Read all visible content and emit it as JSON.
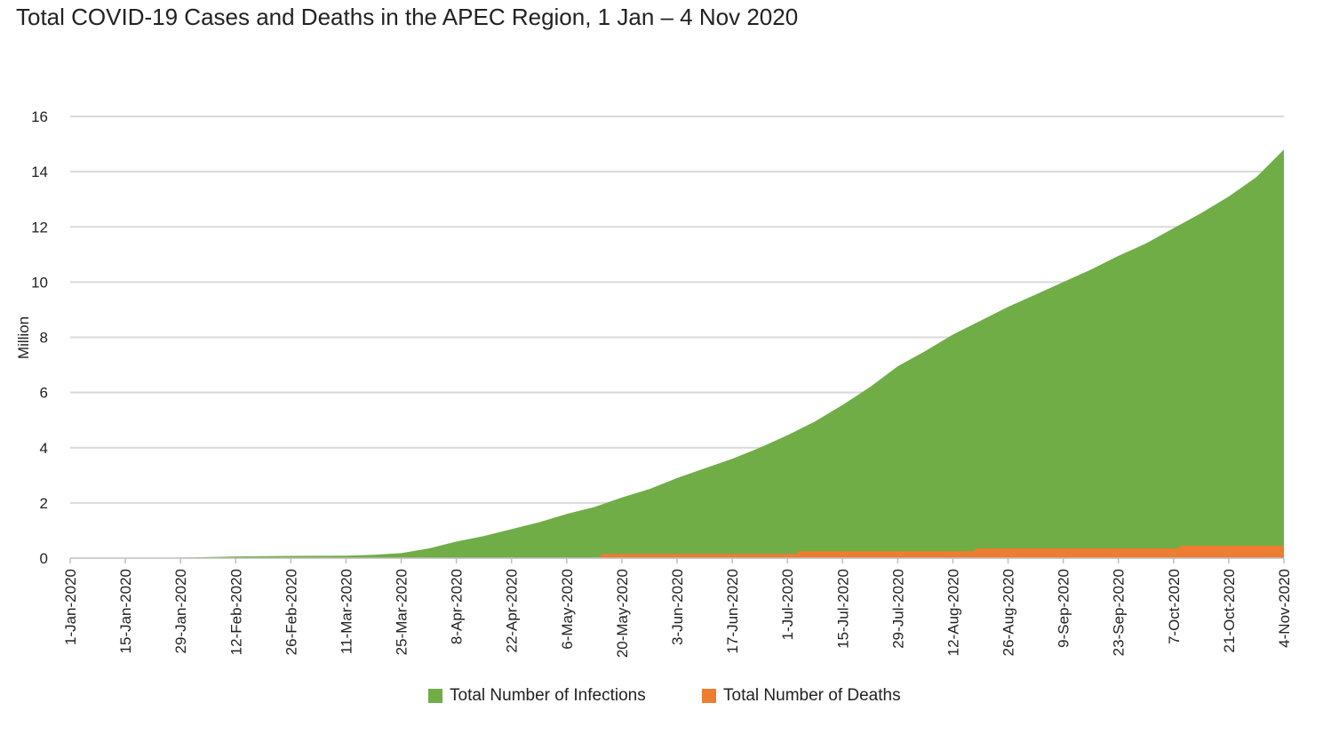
{
  "title": "Total COVID-19 Cases and Deaths in the APEC Region, 1 Jan – 4 Nov 2020",
  "chart_data": {
    "type": "area",
    "title": "Total COVID-19 Cases and Deaths in the APEC Region, 1 Jan – 4 Nov 2020",
    "ylabel": "Million",
    "ylim": [
      0,
      16
    ],
    "yticks": [
      0,
      2,
      4,
      6,
      8,
      10,
      12,
      14,
      16
    ],
    "xlim": [
      "2020-01-01",
      "2020-11-04"
    ],
    "xticks": [
      "1-Jan-2020",
      "15-Jan-2020",
      "29-Jan-2020",
      "12-Feb-2020",
      "26-Feb-2020",
      "11-Mar-2020",
      "25-Mar-2020",
      "8-Apr-2020",
      "22-Apr-2020",
      "6-May-2020",
      "20-May-2020",
      "3-Jun-2020",
      "17-Jun-2020",
      "1-Jul-2020",
      "15-Jul-2020",
      "29-Jul-2020",
      "12-Aug-2020",
      "26-Aug-2020",
      "9-Sep-2020",
      "23-Sep-2020",
      "7-Oct-2020",
      "21-Oct-2020",
      "4-Nov-2020"
    ],
    "grid": true,
    "legend_position": "bottom",
    "series": [
      {
        "name": "Total Number of Infections",
        "color": "#70ad47",
        "points": [
          [
            "2020-01-01",
            0
          ],
          [
            "2020-01-15",
            0
          ],
          [
            "2020-01-29",
            0.02
          ],
          [
            "2020-02-12",
            0.06
          ],
          [
            "2020-02-26",
            0.08
          ],
          [
            "2020-03-11",
            0.09
          ],
          [
            "2020-03-18",
            0.12
          ],
          [
            "2020-03-25",
            0.18
          ],
          [
            "2020-04-01",
            0.35
          ],
          [
            "2020-04-08",
            0.6
          ],
          [
            "2020-04-15",
            0.8
          ],
          [
            "2020-04-22",
            1.05
          ],
          [
            "2020-04-29",
            1.3
          ],
          [
            "2020-05-06",
            1.6
          ],
          [
            "2020-05-13",
            1.85
          ],
          [
            "2020-05-20",
            2.2
          ],
          [
            "2020-05-27",
            2.5
          ],
          [
            "2020-06-03",
            2.9
          ],
          [
            "2020-06-10",
            3.25
          ],
          [
            "2020-06-17",
            3.6
          ],
          [
            "2020-06-24",
            4.0
          ],
          [
            "2020-07-01",
            4.45
          ],
          [
            "2020-07-08",
            4.95
          ],
          [
            "2020-07-15",
            5.55
          ],
          [
            "2020-07-22",
            6.2
          ],
          [
            "2020-07-29",
            6.95
          ],
          [
            "2020-08-05",
            7.5
          ],
          [
            "2020-08-12",
            8.1
          ],
          [
            "2020-08-19",
            8.6
          ],
          [
            "2020-08-26",
            9.1
          ],
          [
            "2020-09-02",
            9.55
          ],
          [
            "2020-09-09",
            10.0
          ],
          [
            "2020-09-16",
            10.45
          ],
          [
            "2020-09-23",
            10.95
          ],
          [
            "2020-09-30",
            11.4
          ],
          [
            "2020-10-07",
            11.95
          ],
          [
            "2020-10-14",
            12.5
          ],
          [
            "2020-10-21",
            13.1
          ],
          [
            "2020-10-28",
            13.8
          ],
          [
            "2020-11-04",
            14.8
          ]
        ]
      },
      {
        "name": "Total Number of Deaths",
        "color": "#ed7d31",
        "points": [
          [
            "2020-01-01",
            0
          ],
          [
            "2020-05-14",
            0
          ],
          [
            "2020-05-15",
            0.15
          ],
          [
            "2020-07-03",
            0.15
          ],
          [
            "2020-07-04",
            0.25
          ],
          [
            "2020-08-17",
            0.25
          ],
          [
            "2020-08-18",
            0.35
          ],
          [
            "2020-10-08",
            0.35
          ],
          [
            "2020-10-09",
            0.45
          ],
          [
            "2020-11-04",
            0.45
          ]
        ]
      }
    ]
  }
}
